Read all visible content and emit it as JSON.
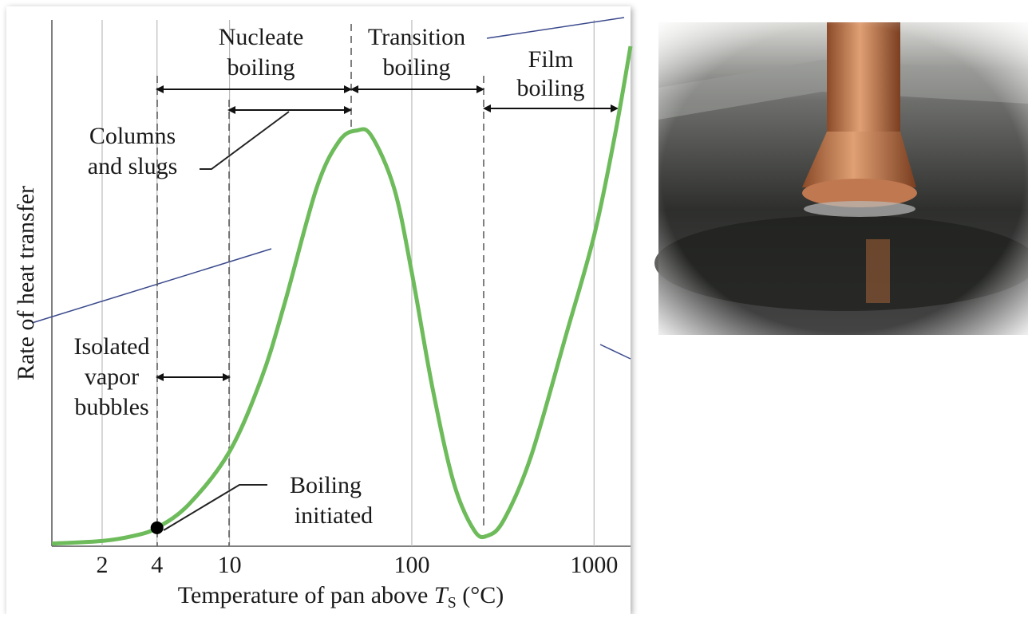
{
  "chart_data": {
    "type": "line",
    "x_label": [
      "Temperature of pan above ",
      "T",
      "S",
      " (°C)"
    ],
    "y_label": "Rate of heat transfer",
    "x": [
      1.06,
      2,
      3,
      4,
      6,
      10,
      15,
      20,
      30,
      40,
      50,
      60,
      80,
      100,
      130,
      170,
      220,
      260,
      320,
      450,
      700,
      1000,
      1300,
      1585
    ],
    "values": [
      0.5,
      1,
      2,
      3.5,
      8,
      18,
      32,
      46,
      68,
      77,
      79,
      78,
      68,
      52,
      30,
      12,
      3,
      2,
      5,
      17,
      40,
      59,
      78,
      95
    ],
    "color": "#6dbb5a",
    "highlight_point": {
      "x": 4,
      "y": 3.5
    },
    "log_x": true,
    "xlim": [
      1.06,
      1585
    ],
    "ylim": [
      0,
      100
    ],
    "xticks": [
      2,
      4,
      10,
      100,
      1000
    ],
    "grid": true,
    "annotations": {
      "nucleate": [
        "Nucleate",
        "boiling"
      ],
      "transition": [
        "Transition",
        "boiling"
      ],
      "film": [
        "Film",
        "boiling"
      ],
      "columns": [
        "Columns",
        "and slugs"
      ],
      "isolated": [
        "Isolated",
        "vapor",
        "bubbles"
      ],
      "initiated": [
        "Boiling",
        "initiated"
      ]
    }
  }
}
